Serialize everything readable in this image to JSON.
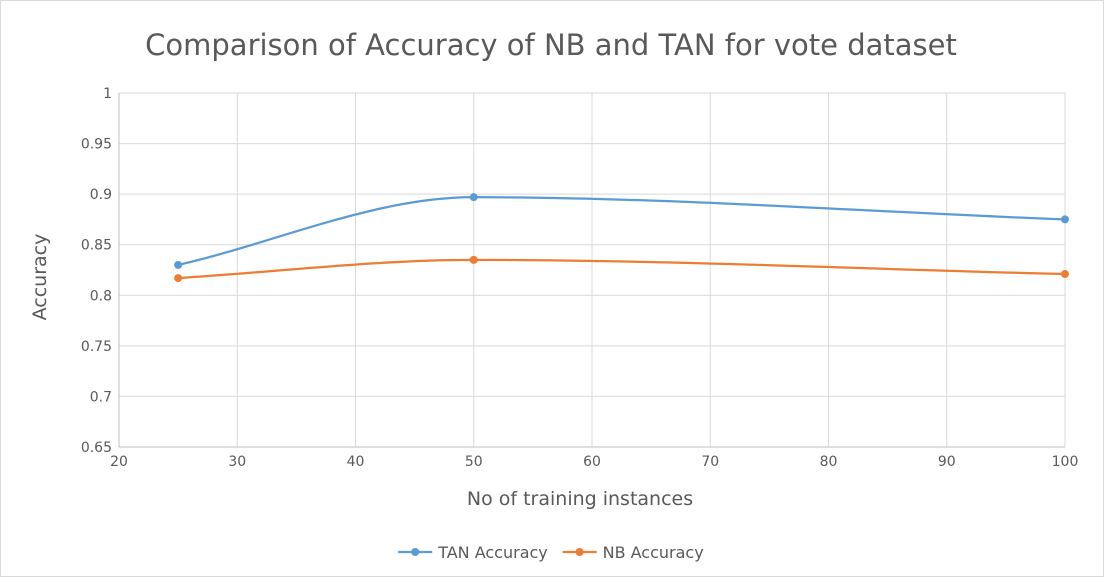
{
  "chart_data": {
    "type": "line",
    "title": "Comparison of Accuracy of NB and TAN for vote dataset",
    "xlabel": "No of training instances",
    "ylabel": "Accuracy",
    "xlim": [
      20,
      100
    ],
    "ylim": [
      0.65,
      1
    ],
    "x_ticks": [
      "20",
      "30",
      "40",
      "50",
      "60",
      "70",
      "80",
      "90",
      "100"
    ],
    "y_ticks": [
      "0.65",
      "0.7",
      "0.75",
      "0.8",
      "0.85",
      "0.9",
      "0.95",
      "1"
    ],
    "grid": true,
    "smooth": true,
    "legend_position": "bottom",
    "series": [
      {
        "name": "TAN Accuracy",
        "color": "#5b9bd5",
        "x": [
          25,
          50,
          100
        ],
        "y": [
          0.83,
          0.897,
          0.875
        ]
      },
      {
        "name": "NB Accuracy",
        "color": "#ed7d31",
        "x": [
          25,
          50,
          100
        ],
        "y": [
          0.817,
          0.835,
          0.821
        ]
      }
    ]
  }
}
